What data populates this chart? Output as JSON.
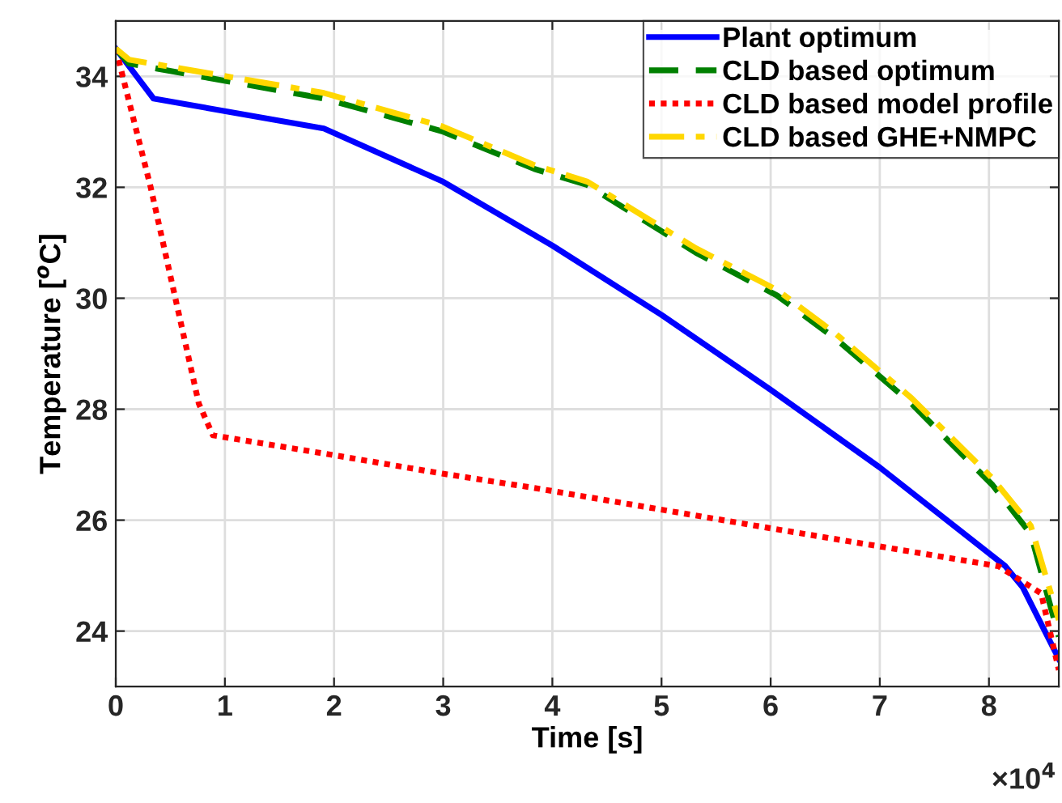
{
  "chart_data": {
    "type": "line",
    "xlabel": "Time [s]",
    "ylabel": "Temperature [$^{o}$C]",
    "xlim": [
      0,
      8.64
    ],
    "ylim": [
      23,
      35
    ],
    "xticks": [
      0,
      1,
      2,
      3,
      4,
      5,
      6,
      7,
      8
    ],
    "yticks": [
      24,
      26,
      28,
      30,
      32,
      34
    ],
    "grid": true,
    "legend": "top right",
    "annotations": [
      "×10$^{4}$"
    ],
    "series": [
      {
        "name": "Plant optimum",
        "color": "#0000ff",
        "line_style": "solid",
        "x": [
          0,
          0.346,
          1.907,
          3.0,
          4.0,
          5.0,
          6.0,
          7.0,
          8.15,
          8.309,
          8.64
        ],
        "values": [
          34.5,
          33.6,
          33.06,
          32.1,
          30.95,
          29.7,
          28.35,
          26.95,
          25.17,
          24.79,
          23.5
        ]
      },
      {
        "name": "CLD based optimum",
        "color": "#008000",
        "line_style": "dashed",
        "x": [
          0,
          0.123,
          1.907,
          2.99,
          3.836,
          4.322,
          5.316,
          6.058,
          6.602,
          7.29,
          8.034,
          8.383,
          8.64
        ],
        "values": [
          34.5,
          34.23,
          33.6,
          33.01,
          32.33,
          32.04,
          30.82,
          30.05,
          29.26,
          28.1,
          26.63,
          25.75,
          23.9
        ]
      },
      {
        "name": "CLD based model profile",
        "color": "#ff0000",
        "line_style": "dotted",
        "x": [
          0,
          0.32,
          0.761,
          0.89,
          2.003,
          2.99,
          3.836,
          6.01,
          8.087,
          8.478,
          8.64
        ],
        "values": [
          34.5,
          32.0,
          28.1,
          27.53,
          27.17,
          26.84,
          26.58,
          25.85,
          25.17,
          24.68,
          23.3
        ]
      },
      {
        "name": "CLD based GHE+NMPC",
        "color": "#ffd700",
        "line_style": "dashdot",
        "x": [
          0,
          0.123,
          1.907,
          2.99,
          3.836,
          4.322,
          5.316,
          6.058,
          6.602,
          7.29,
          8.034,
          8.383,
          8.64
        ],
        "values": [
          34.5,
          34.3,
          33.7,
          33.1,
          32.4,
          32.1,
          30.9,
          30.15,
          29.35,
          28.2,
          26.75,
          25.9,
          24.2
        ]
      }
    ]
  }
}
